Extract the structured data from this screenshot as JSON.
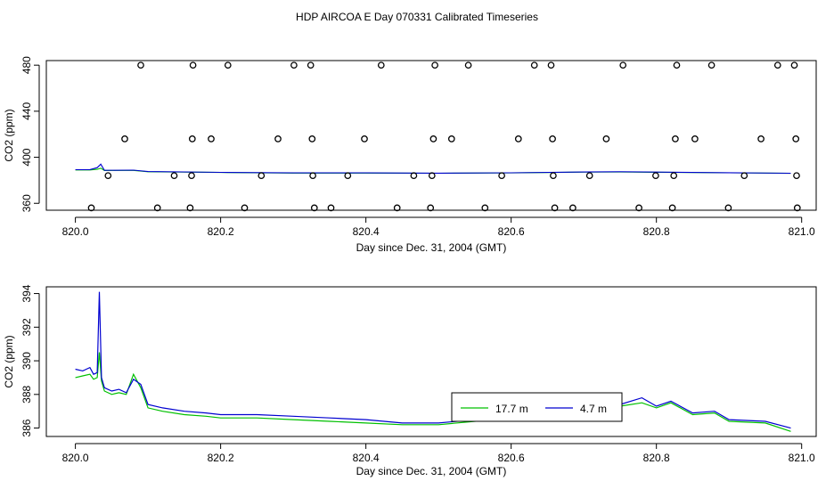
{
  "chart_data": [
    {
      "type": "scatter",
      "title": "HDP AIRCOA E  Day 070331  Calibrated Timeseries",
      "xlabel": "Day since Dec. 31, 2004 (GMT)",
      "ylabel": "CO2 (ppm)",
      "xlim": [
        819.96,
        821.02
      ],
      "ylim": [
        354,
        484
      ],
      "x_ticks": [
        820.0,
        820.2,
        820.4,
        820.6,
        820.8,
        821.0
      ],
      "x_tick_labels": [
        "820.0",
        "820.2",
        "820.4",
        "820.6",
        "820.8",
        "821.0"
      ],
      "y_ticks": [
        360,
        400,
        440,
        480
      ],
      "y_tick_labels": [
        "360",
        "400",
        "440",
        "480"
      ],
      "grid": false,
      "line_series": [
        {
          "color": "#00c000",
          "x": [
            820.0,
            820.02,
            820.03,
            820.035,
            820.04,
            820.08,
            820.1,
            820.2,
            820.3,
            820.4,
            820.5,
            820.6,
            820.7,
            820.75,
            820.8,
            820.9,
            820.985
          ],
          "values": [
            389,
            389,
            389.5,
            390.5,
            388.5,
            388.6,
            387.4,
            386.8,
            386.3,
            386.3,
            386.1,
            386.4,
            387.1,
            387.2,
            387.0,
            386.5,
            386.0
          ]
        },
        {
          "color": "#0000d0",
          "x": [
            820.0,
            820.02,
            820.03,
            820.035,
            820.04,
            820.08,
            820.1,
            820.2,
            820.3,
            820.4,
            820.5,
            820.6,
            820.7,
            820.75,
            820.8,
            820.9,
            820.985
          ],
          "values": [
            389.2,
            389.3,
            391,
            394,
            388.7,
            388.8,
            387.6,
            386.9,
            386.4,
            386.4,
            386.2,
            386.5,
            387.2,
            387.4,
            387.1,
            386.6,
            386.1
          ]
        }
      ],
      "points": {
        "x": [
          820.022,
          820.045,
          820.068,
          820.09,
          820.113,
          820.136,
          820.158,
          820.16,
          820.161,
          820.162,
          820.187,
          820.21,
          820.233,
          820.256,
          820.279,
          820.301,
          820.324,
          820.326,
          820.327,
          820.329,
          820.352,
          820.375,
          820.398,
          820.421,
          820.443,
          820.466,
          820.489,
          820.491,
          820.493,
          820.495,
          820.518,
          820.541,
          820.564,
          820.587,
          820.61,
          820.632,
          820.655,
          820.657,
          820.658,
          820.66,
          820.685,
          820.708,
          820.731,
          820.754,
          820.776,
          820.799,
          820.822,
          820.824,
          820.826,
          820.828,
          820.853,
          820.876,
          820.899,
          820.921,
          820.944,
          820.967,
          820.99,
          820.992,
          820.993,
          820.994
        ],
        "values": [
          356,
          384,
          416,
          480,
          356,
          384,
          356,
          384,
          416,
          480,
          416,
          480,
          356,
          384,
          416,
          480,
          480,
          416,
          384,
          356,
          356,
          384,
          416,
          480,
          356,
          384,
          356,
          384,
          416,
          480,
          416,
          480,
          356,
          384,
          416,
          480,
          480,
          416,
          384,
          356,
          356,
          384,
          416,
          480,
          356,
          384,
          356,
          384,
          416,
          480,
          416,
          480,
          356,
          384,
          416,
          480,
          480,
          416,
          384,
          356
        ]
      }
    },
    {
      "type": "line",
      "title": "",
      "xlabel": "Day since Dec. 31, 2004 (GMT)",
      "ylabel": "CO2 (ppm)",
      "xlim": [
        819.96,
        821.02
      ],
      "ylim": [
        385.5,
        394.4
      ],
      "x_ticks": [
        820.0,
        820.2,
        820.4,
        820.6,
        820.8,
        821.0
      ],
      "x_tick_labels": [
        "820.0",
        "820.2",
        "820.4",
        "820.6",
        "820.8",
        "821.0"
      ],
      "y_ticks": [
        386,
        388,
        390,
        392,
        394
      ],
      "y_tick_labels": [
        "386",
        "388",
        "390",
        "392",
        "394"
      ],
      "grid": false,
      "legend": {
        "placement": "bottom-center"
      },
      "series": [
        {
          "name": "17.7 m",
          "color": "#00c000",
          "x": [
            820.0,
            820.01,
            820.02,
            820.025,
            820.03,
            820.033,
            820.036,
            820.04,
            820.05,
            820.06,
            820.07,
            820.08,
            820.09,
            820.1,
            820.12,
            820.15,
            820.18,
            820.2,
            820.25,
            820.3,
            820.35,
            820.4,
            820.45,
            820.5,
            820.55,
            820.6,
            820.65,
            820.7,
            820.75,
            820.78,
            820.8,
            820.82,
            820.85,
            820.88,
            820.9,
            820.95,
            820.985
          ],
          "values": [
            389.0,
            389.1,
            389.2,
            388.9,
            389.0,
            390.5,
            388.8,
            388.2,
            388.0,
            388.1,
            388.0,
            389.2,
            388.4,
            387.2,
            387.0,
            386.8,
            386.7,
            386.6,
            386.6,
            386.5,
            386.4,
            386.3,
            386.2,
            386.2,
            386.4,
            386.6,
            386.8,
            387.1,
            387.3,
            387.5,
            387.2,
            387.5,
            386.8,
            386.9,
            386.4,
            386.3,
            385.8
          ]
        },
        {
          "name": "4.7 m",
          "color": "#0000d0",
          "x": [
            820.0,
            820.01,
            820.02,
            820.025,
            820.03,
            820.033,
            820.036,
            820.04,
            820.05,
            820.06,
            820.07,
            820.08,
            820.09,
            820.1,
            820.12,
            820.15,
            820.18,
            820.2,
            820.25,
            820.3,
            820.35,
            820.4,
            820.45,
            820.5,
            820.55,
            820.6,
            820.65,
            820.7,
            820.75,
            820.78,
            820.8,
            820.82,
            820.85,
            820.88,
            820.9,
            820.95,
            820.985
          ],
          "values": [
            389.5,
            389.4,
            389.6,
            389.2,
            389.3,
            394.1,
            389.0,
            388.4,
            388.2,
            388.3,
            388.1,
            388.9,
            388.6,
            387.4,
            387.2,
            387.0,
            386.9,
            386.8,
            386.8,
            386.7,
            386.6,
            386.5,
            386.3,
            386.3,
            386.5,
            386.7,
            386.9,
            387.2,
            387.4,
            387.8,
            387.3,
            387.6,
            386.9,
            387.0,
            386.5,
            386.4,
            386.0
          ]
        }
      ]
    }
  ]
}
